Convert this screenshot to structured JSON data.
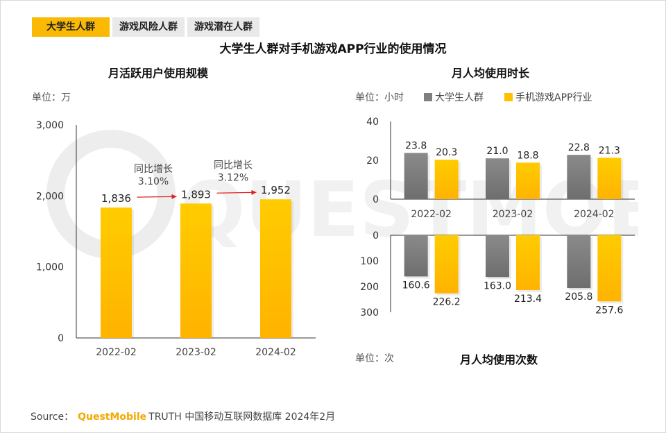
{
  "tabs": [
    {
      "label": "大学生人群",
      "active": true
    },
    {
      "label": "游戏风险人群",
      "active": false
    },
    {
      "label": "游戏潜在人群",
      "active": false
    }
  ],
  "title": "大学生人群对手机游戏APP行业的使用情况",
  "left_chart": {
    "subtitle": "月活跃用户使用规模",
    "unit": "单位：万"
  },
  "right_chart": {
    "subtitle_top": "月人均使用时长",
    "unit_top": "单位：小时",
    "subtitle_bottom": "月人均使用次数",
    "unit_bottom": "单位：次"
  },
  "legend": [
    {
      "name": "大学生人群",
      "color": "#7f7f7f"
    },
    {
      "name": "手机游戏APP行业",
      "color": "#ffc000"
    }
  ],
  "watermark": "QUESTMOBILE",
  "source": {
    "prefix": "Source：",
    "brand": "QuestMobile",
    "rest": "TRUTH 中国移动互联网数据库 2024年2月"
  },
  "chart_data": [
    {
      "type": "bar",
      "title": "月活跃用户使用规模",
      "categories": [
        "2022-02",
        "2023-02",
        "2024-02"
      ],
      "values": [
        1836,
        1893,
        1952
      ],
      "value_labels": [
        "1,836",
        "1,893",
        "1,952"
      ],
      "ylim": [
        0,
        3000
      ],
      "yticks": [
        "0",
        "1,000",
        "2,000",
        "3,000"
      ],
      "color": "#ffc000",
      "annotations": [
        {
          "text": "同比增长",
          "value": "3.10%"
        },
        {
          "text": "同比增长",
          "value": "3.12%"
        }
      ]
    },
    {
      "type": "bar",
      "title": "月人均使用时长",
      "categories": [
        "2022-02",
        "2023-02",
        "2024-02"
      ],
      "ylim": [
        0,
        40
      ],
      "yticks": [
        "0",
        "20",
        "40"
      ],
      "series": [
        {
          "name": "大学生人群",
          "values": [
            23.8,
            21.0,
            22.8
          ],
          "labels": [
            "23.8",
            "21.0",
            "22.8"
          ]
        },
        {
          "name": "手机游戏APP行业",
          "values": [
            20.3,
            18.8,
            21.3
          ],
          "labels": [
            "20.3",
            "18.8",
            "21.3"
          ]
        }
      ]
    },
    {
      "type": "bar",
      "title": "月人均使用次数",
      "categories": [
        "2022-02",
        "2023-02",
        "2024-02"
      ],
      "ylim": [
        0,
        300
      ],
      "yticks": [
        "0",
        "100",
        "200",
        "300"
      ],
      "inverted": true,
      "series": [
        {
          "name": "大学生人群",
          "values": [
            160.6,
            163.0,
            205.8
          ],
          "labels": [
            "160.6",
            "163.0",
            "205.8"
          ]
        },
        {
          "name": "手机游戏APP行业",
          "values": [
            226.2,
            213.4,
            257.6
          ],
          "labels": [
            "226.2",
            "213.4",
            "257.6"
          ]
        }
      ]
    }
  ]
}
